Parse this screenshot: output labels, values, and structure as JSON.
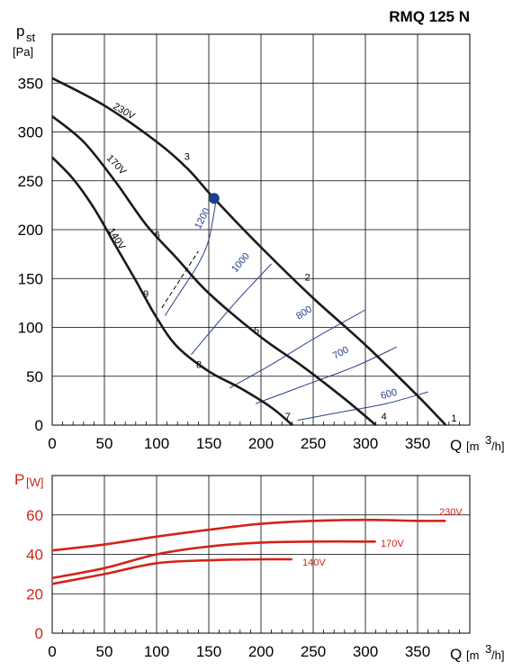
{
  "title": "RMQ 125 N",
  "colors": {
    "curve": "#1a1a1a",
    "iso": "#2a3f8c",
    "power": "#d22418",
    "grid": "#000000",
    "marker": "#1f3d8f"
  },
  "chart_data": [
    {
      "type": "line",
      "ylabel_main": "p",
      "ylabel_sub": "st",
      "ylabel_unit": "[Pa]",
      "xlabel_main": "Q",
      "xlabel_unit": "[m",
      "xlabel_sup": "3",
      "xlabel_end": "/h]",
      "xlim": [
        0,
        400
      ],
      "ylim": [
        0,
        400
      ],
      "xticks": [
        0,
        50,
        100,
        150,
        200,
        250,
        300,
        350
      ],
      "yticks": [
        0,
        50,
        100,
        150,
        200,
        250,
        300,
        350
      ],
      "grid": true,
      "series": [
        {
          "name": "230V",
          "points": [
            [
              0,
              355
            ],
            [
              50,
              327
            ],
            [
              100,
              290
            ],
            [
              130,
              262
            ],
            [
              155,
              232
            ],
            [
              200,
              182
            ],
            [
              250,
              130
            ],
            [
              300,
              82
            ],
            [
              350,
              30
            ],
            [
              377,
              0
            ]
          ]
        },
        {
          "name": "170V",
          "points": [
            [
              0,
              316
            ],
            [
              30,
              290
            ],
            [
              60,
              250
            ],
            [
              90,
              205
            ],
            [
              120,
              170
            ],
            [
              150,
              135
            ],
            [
              200,
              90
            ],
            [
              240,
              60
            ],
            [
              280,
              27
            ],
            [
              310,
              0
            ]
          ]
        },
        {
          "name": "140V",
          "points": [
            [
              0,
              274
            ],
            [
              20,
              252
            ],
            [
              40,
              222
            ],
            [
              60,
              185
            ],
            [
              80,
              148
            ],
            [
              100,
              110
            ],
            [
              120,
              80
            ],
            [
              150,
              55
            ],
            [
              180,
              38
            ],
            [
              210,
              18
            ],
            [
              230,
              0
            ]
          ]
        }
      ],
      "isolines": [
        {
          "name": "1200",
          "points": [
            [
              108,
              112
            ],
            [
              122,
              135
            ],
            [
              140,
              165
            ],
            [
              150,
              190
            ],
            [
              157,
              230
            ]
          ]
        },
        {
          "name": "1000",
          "points": [
            [
              133,
              72
            ],
            [
              155,
              100
            ],
            [
              175,
              125
            ],
            [
              195,
              148
            ],
            [
              210,
              165
            ]
          ]
        },
        {
          "name": "800",
          "points": [
            [
              170,
              38
            ],
            [
              210,
              62
            ],
            [
              250,
              88
            ],
            [
              300,
              118
            ]
          ]
        },
        {
          "name": "700",
          "points": [
            [
              195,
              22
            ],
            [
              240,
              40
            ],
            [
              290,
              60
            ],
            [
              330,
              80
            ]
          ]
        },
        {
          "name": "600",
          "points": [
            [
              235,
              5
            ],
            [
              280,
              14
            ],
            [
              320,
              22
            ],
            [
              360,
              34
            ]
          ]
        }
      ],
      "points": [
        {
          "label": "1",
          "x": 377,
          "y": 0
        },
        {
          "label": "2",
          "x": 235,
          "y": 150
        },
        {
          "label": "3",
          "x": 130,
          "y": 262
        },
        {
          "label": "4",
          "x": 310,
          "y": 0
        },
        {
          "label": "5",
          "x": 200,
          "y": 98
        },
        {
          "label": "6",
          "x": 110,
          "y": 193
        },
        {
          "label": "7",
          "x": 230,
          "y": 0
        },
        {
          "label": "8",
          "x": 150,
          "y": 55
        },
        {
          "label": "9",
          "x": 100,
          "y": 118
        }
      ],
      "marker": {
        "x": 155,
        "y": 232
      }
    },
    {
      "type": "line",
      "ylabel_main": "P",
      "ylabel_unit": "[W]",
      "xlabel_main": "Q",
      "xlabel_unit": "[m",
      "xlabel_sup": "3",
      "xlabel_end": "/h]",
      "xlim": [
        0,
        400
      ],
      "ylim": [
        0,
        80
      ],
      "xticks": [
        0,
        50,
        100,
        150,
        200,
        250,
        300,
        350
      ],
      "yticks": [
        0,
        20,
        40,
        60
      ],
      "grid": true,
      "series": [
        {
          "name": "230V",
          "points": [
            [
              0,
              42
            ],
            [
              50,
              45
            ],
            [
              100,
              49
            ],
            [
              150,
              52.5
            ],
            [
              200,
              55.5
            ],
            [
              250,
              57
            ],
            [
              300,
              57.5
            ],
            [
              350,
              57
            ],
            [
              377,
              57
            ]
          ]
        },
        {
          "name": "170V",
          "points": [
            [
              0,
              28
            ],
            [
              50,
              33
            ],
            [
              100,
              40
            ],
            [
              150,
              44
            ],
            [
              200,
              46
            ],
            [
              250,
              46.5
            ],
            [
              300,
              46.5
            ],
            [
              310,
              46.5
            ]
          ]
        },
        {
          "name": "140V",
          "points": [
            [
              0,
              25
            ],
            [
              50,
              30
            ],
            [
              100,
              35.5
            ],
            [
              150,
              37
            ],
            [
              200,
              37.5
            ],
            [
              230,
              37.5
            ]
          ]
        }
      ]
    }
  ]
}
